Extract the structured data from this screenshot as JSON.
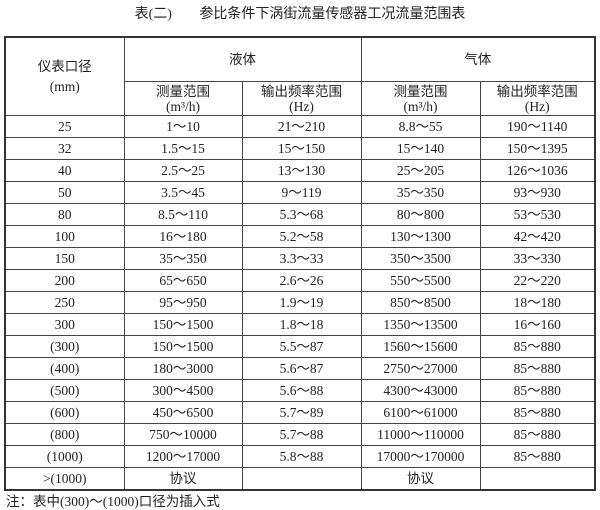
{
  "title": {
    "label": "表(二)",
    "text": "参比条件下涡街流量传感器工况流量范围表"
  },
  "header": {
    "diameter": "仪表口径",
    "diameter_unit": "(mm)",
    "liquid": "液体",
    "gas": "气体",
    "range": "测量范围",
    "range_unit": "(m³/h)",
    "freq": "输出频率范围",
    "freq_unit": "(Hz)"
  },
  "rows": [
    [
      "25",
      "1～10",
      "21～210",
      "8.8～55",
      "190～1140"
    ],
    [
      "32",
      "1.5～15",
      "15～150",
      "15～140",
      "150～1395"
    ],
    [
      "40",
      "2.5～25",
      "13～130",
      "25～205",
      "126～1036"
    ],
    [
      "50",
      "3.5～45",
      "9～119",
      "35～350",
      "93～930"
    ],
    [
      "80",
      "8.5～110",
      "5.3～68",
      "80～800",
      "53～530"
    ],
    [
      "100",
      "16～180",
      "5.2～58",
      "130～1300",
      "42～420"
    ],
    [
      "150",
      "35～350",
      "3.3～33",
      "350～3500",
      "33～330"
    ],
    [
      "200",
      "65～650",
      "2.6～26",
      "550～5500",
      "22～220"
    ],
    [
      "250",
      "95～950",
      "1.9～19",
      "850～8500",
      "18～180"
    ],
    [
      "300",
      "150～1500",
      "1.8～18",
      "1350～13500",
      "16～160"
    ],
    [
      "(300)",
      "150～1500",
      "5.5～87",
      "1560～15600",
      "85～880"
    ],
    [
      "(400)",
      "180～3000",
      "5.6～87",
      "2750～27000",
      "85～880"
    ],
    [
      "(500)",
      "300～4500",
      "5.6～88",
      "4300～43000",
      "85～880"
    ],
    [
      "(600)",
      "450～6500",
      "5.7～89",
      "6100～61000",
      "85～880"
    ],
    [
      "(800)",
      "750～10000",
      "5.7～88",
      "11000～110000",
      "85～880"
    ],
    [
      "(1000)",
      "1200～17000",
      "5.8～88",
      "17000～170000",
      "85～880"
    ],
    [
      ">(1000)",
      "协议",
      "",
      "协议",
      ""
    ]
  ],
  "note": "注：表中(300)～(1000)口径为插入式"
}
